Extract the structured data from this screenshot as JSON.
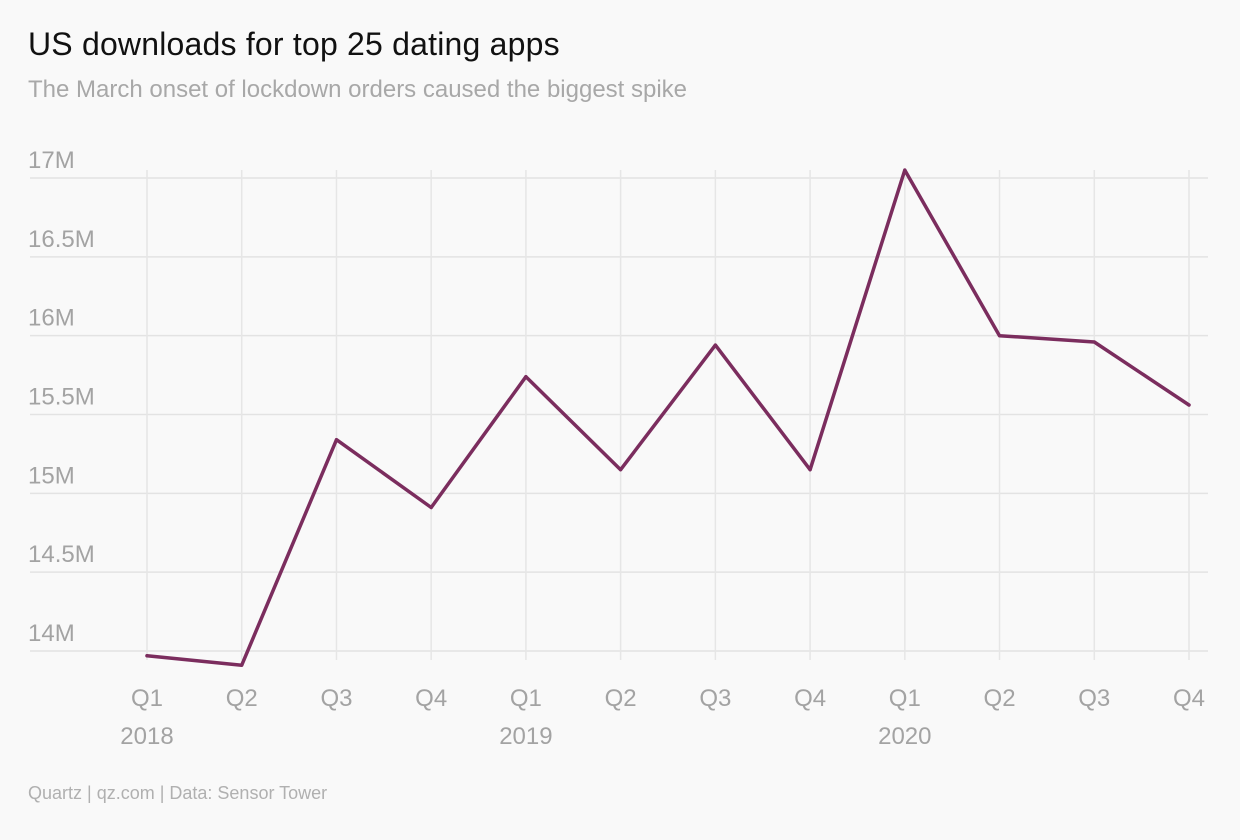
{
  "title": "US downloads for top 25 dating apps",
  "subtitle": "The March onset of lockdown orders caused the biggest spike",
  "footer": "Quartz | qz.com | Data: Sensor Tower",
  "colors": {
    "line": "#7b2d5e",
    "grid": "#e3e3e3",
    "tick_text": "#a3a3a3",
    "background": "#f9f9f9"
  },
  "chart_data": {
    "type": "line",
    "title": "US downloads for top 25 dating apps",
    "subtitle": "The March onset of lockdown orders caused the biggest spike",
    "xlabel": "",
    "ylabel": "",
    "categories": [
      "Q1",
      "Q2",
      "Q3",
      "Q4",
      "Q1",
      "Q2",
      "Q3",
      "Q4",
      "Q1",
      "Q2",
      "Q3",
      "Q4"
    ],
    "year_labels": [
      {
        "label": "2018",
        "at_index": 0
      },
      {
        "label": "2019",
        "at_index": 4
      },
      {
        "label": "2020",
        "at_index": 8
      }
    ],
    "series": [
      {
        "values": [
          13.97,
          13.91,
          15.34,
          14.91,
          15.74,
          15.15,
          15.94,
          15.15,
          17.05,
          16.0,
          15.96,
          15.56
        ]
      }
    ],
    "y_ticks": [
      {
        "value": 14.0,
        "label": "14M"
      },
      {
        "value": 14.5,
        "label": "14.5M"
      },
      {
        "value": 15.0,
        "label": "15M"
      },
      {
        "value": 15.5,
        "label": "15.5M"
      },
      {
        "value": 16.0,
        "label": "16M"
      },
      {
        "value": 16.5,
        "label": "16.5M"
      },
      {
        "value": 17.0,
        "label": "17M"
      }
    ],
    "ylim": [
      13.9,
      17.05
    ],
    "unit": "M",
    "grid": true,
    "legend": "none"
  }
}
